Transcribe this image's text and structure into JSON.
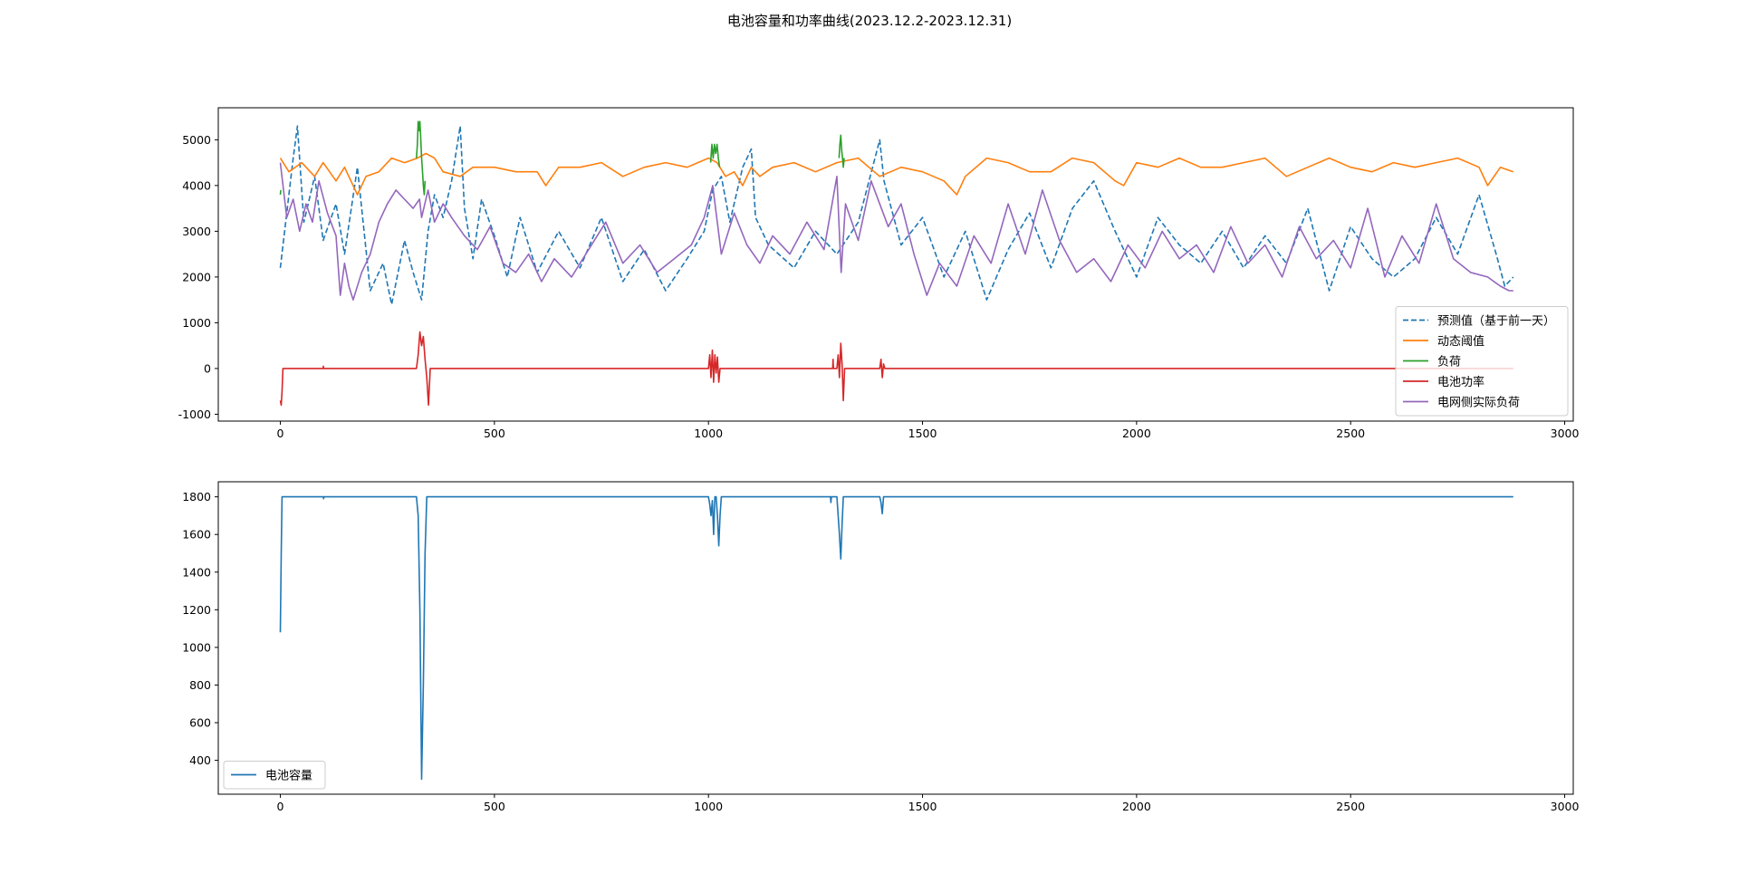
{
  "figure": {
    "title": "电池容量和功率曲线(2023.12.2-2023.12.31)"
  },
  "chart_data": [
    {
      "type": "line",
      "panel": "top",
      "xlim": [
        -145,
        3020
      ],
      "ylim": [
        -1150,
        5700
      ],
      "xticks": [
        0,
        500,
        1000,
        1500,
        2000,
        2500,
        3000
      ],
      "yticks": [
        -1000,
        0,
        1000,
        2000,
        3000,
        4000,
        5000
      ],
      "legend_position": "lower-right",
      "grid": false,
      "series": [
        {
          "name": "预测值（基于前一天）",
          "color": "#1f77b4",
          "dashed": true,
          "x": [
            0,
            15,
            30,
            40,
            55,
            80,
            100,
            130,
            150,
            180,
            210,
            240,
            260,
            290,
            310,
            330,
            345,
            360,
            380,
            400,
            420,
            430,
            450,
            470,
            500,
            530,
            560,
            600,
            650,
            700,
            750,
            800,
            850,
            900,
            950,
            990,
            1010,
            1030,
            1050,
            1080,
            1100,
            1110,
            1140,
            1200,
            1250,
            1300,
            1350,
            1400,
            1410,
            1450,
            1500,
            1550,
            1600,
            1650,
            1700,
            1750,
            1800,
            1850,
            1900,
            1950,
            2000,
            2050,
            2100,
            2150,
            2200,
            2250,
            2300,
            2350,
            2400,
            2450,
            2500,
            2550,
            2600,
            2650,
            2700,
            2750,
            2800,
            2840,
            2860,
            2880
          ],
          "y": [
            2200,
            3400,
            4600,
            5300,
            3200,
            4200,
            2800,
            3600,
            2500,
            4400,
            1700,
            2300,
            1400,
            2800,
            2100,
            1500,
            3000,
            3800,
            3300,
            4100,
            5300,
            3500,
            2400,
            3700,
            2900,
            2000,
            3300,
            2100,
            3000,
            2200,
            3300,
            1900,
            2600,
            1700,
            2400,
            3000,
            3900,
            4200,
            3200,
            4400,
            4800,
            3300,
            2700,
            2200,
            3000,
            2500,
            3200,
            5000,
            4100,
            2700,
            3300,
            2000,
            3000,
            1500,
            2600,
            3400,
            2200,
            3500,
            4100,
            3000,
            2000,
            3300,
            2700,
            2300,
            3000,
            2200,
            2900,
            2300,
            3500,
            1700,
            3100,
            2400,
            2000,
            2400,
            3300,
            2500,
            3800,
            2500,
            1800,
            2000
          ]
        },
        {
          "name": "动态阈值",
          "color": "#ff7f0e",
          "dashed": false,
          "x": [
            0,
            20,
            50,
            80,
            100,
            130,
            150,
            180,
            200,
            230,
            260,
            290,
            320,
            340,
            360,
            380,
            420,
            450,
            500,
            550,
            600,
            620,
            650,
            700,
            750,
            800,
            850,
            900,
            950,
            1000,
            1020,
            1040,
            1060,
            1080,
            1100,
            1120,
            1150,
            1200,
            1250,
            1300,
            1350,
            1400,
            1450,
            1500,
            1550,
            1580,
            1600,
            1650,
            1700,
            1750,
            1800,
            1850,
            1900,
            1950,
            1970,
            2000,
            2050,
            2100,
            2150,
            2200,
            2250,
            2300,
            2350,
            2400,
            2450,
            2500,
            2550,
            2600,
            2650,
            2700,
            2750,
            2800,
            2820,
            2850,
            2880
          ],
          "y": [
            4600,
            4300,
            4500,
            4200,
            4500,
            4100,
            4400,
            3800,
            4200,
            4300,
            4600,
            4500,
            4600,
            4700,
            4600,
            4300,
            4200,
            4400,
            4400,
            4300,
            4300,
            4000,
            4400,
            4400,
            4500,
            4200,
            4400,
            4500,
            4400,
            4600,
            4500,
            4200,
            4300,
            4000,
            4400,
            4200,
            4400,
            4500,
            4300,
            4500,
            4600,
            4200,
            4400,
            4300,
            4100,
            3800,
            4200,
            4600,
            4500,
            4300,
            4300,
            4600,
            4500,
            4100,
            4000,
            4500,
            4400,
            4600,
            4400,
            4400,
            4500,
            4600,
            4200,
            4400,
            4600,
            4400,
            4300,
            4500,
            4400,
            4500,
            4600,
            4400,
            4000,
            4400,
            4300
          ]
        },
        {
          "name": "负荷",
          "color": "#2ca02c",
          "dashed": false,
          "segments": [
            {
              "x": [
                0,
                1
              ],
              "y": [
                3800,
                3900
              ]
            },
            {
              "x": [
                318,
                320,
                322,
                324,
                326,
                328,
                330,
                332,
                334,
                336,
                338
              ],
              "y": [
                4600,
                4900,
                5400,
                5200,
                5400,
                5000,
                4600,
                4300,
                4000,
                3800,
                4100
              ]
            },
            {
              "x": [
                1005,
                1008,
                1011,
                1014,
                1017,
                1020,
                1023,
                1026
              ],
              "y": [
                4500,
                4900,
                4600,
                4900,
                4700,
                4900,
                4600,
                4400
              ]
            },
            {
              "x": [
                1305,
                1307,
                1309,
                1311,
                1313,
                1315,
                1317
              ],
              "y": [
                4600,
                4900,
                5100,
                4800,
                4600,
                4400,
                4600
              ]
            }
          ]
        },
        {
          "name": "电池功率",
          "color": "#d62728",
          "dashed": false,
          "x": [
            0,
            2,
            4,
            6,
            100,
            100.5,
            101,
            318,
            322,
            326,
            330,
            334,
            338,
            342,
            346,
            350,
            1000,
            1003,
            1006,
            1009,
            1012,
            1015,
            1018,
            1021,
            1024,
            1027,
            1290,
            1291,
            1292,
            1300,
            1303,
            1306,
            1309,
            1312,
            1315,
            1318,
            1321,
            1400,
            1403,
            1406,
            1409,
            1412,
            2880
          ],
          "y": [
            -700,
            -800,
            -500,
            0,
            0,
            50,
            0,
            0,
            300,
            800,
            500,
            700,
            200,
            -200,
            -800,
            0,
            0,
            300,
            -200,
            400,
            -300,
            300,
            -100,
            250,
            -300,
            0,
            0,
            200,
            0,
            0,
            300,
            -200,
            550,
            100,
            -700,
            0,
            0,
            0,
            200,
            -200,
            100,
            0,
            0
          ]
        },
        {
          "name": "电网侧实际负荷",
          "color": "#9467bd",
          "dashed": false,
          "x": [
            0,
            15,
            30,
            45,
            60,
            75,
            90,
            110,
            130,
            140,
            150,
            160,
            170,
            190,
            210,
            230,
            250,
            270,
            290,
            310,
            325,
            330,
            345,
            360,
            380,
            400,
            430,
            460,
            490,
            520,
            550,
            580,
            610,
            640,
            680,
            720,
            760,
            800,
            840,
            880,
            920,
            960,
            990,
            1010,
            1030,
            1060,
            1090,
            1120,
            1150,
            1190,
            1230,
            1270,
            1300,
            1310,
            1320,
            1350,
            1380,
            1420,
            1450,
            1480,
            1510,
            1540,
            1580,
            1620,
            1660,
            1700,
            1740,
            1780,
            1820,
            1860,
            1900,
            1940,
            1980,
            2020,
            2060,
            2100,
            2140,
            2180,
            2220,
            2260,
            2300,
            2340,
            2380,
            2420,
            2460,
            2500,
            2540,
            2580,
            2620,
            2660,
            2700,
            2740,
            2780,
            2820,
            2850,
            2870,
            2880
          ],
          "y": [
            4500,
            3300,
            3700,
            3000,
            3600,
            3200,
            4100,
            3400,
            2900,
            1600,
            2300,
            1800,
            1500,
            2100,
            2500,
            3200,
            3600,
            3900,
            3700,
            3500,
            3700,
            3300,
            3900,
            3200,
            3600,
            3300,
            2900,
            2600,
            3100,
            2300,
            2100,
            2500,
            1900,
            2400,
            2000,
            2600,
            3200,
            2300,
            2700,
            2100,
            2400,
            2700,
            3300,
            4000,
            2500,
            3400,
            2700,
            2300,
            2900,
            2500,
            3200,
            2600,
            4200,
            2100,
            3600,
            2800,
            4100,
            3100,
            3600,
            2500,
            1600,
            2300,
            1800,
            2900,
            2300,
            3600,
            2500,
            3900,
            2800,
            2100,
            2400,
            1900,
            2700,
            2200,
            3000,
            2400,
            2700,
            2100,
            3100,
            2300,
            2700,
            2000,
            3100,
            2400,
            2800,
            2200,
            3500,
            2000,
            2900,
            2300,
            3600,
            2400,
            2100,
            2000,
            1800,
            1700,
            1700
          ]
        }
      ]
    },
    {
      "type": "line",
      "panel": "bottom",
      "xlim": [
        -145,
        3020
      ],
      "ylim": [
        220,
        1880
      ],
      "xticks": [
        0,
        500,
        1000,
        1500,
        2000,
        2500,
        3000
      ],
      "yticks": [
        400,
        600,
        800,
        1000,
        1200,
        1400,
        1600,
        1800
      ],
      "legend_position": "lower-left",
      "grid": false,
      "series": [
        {
          "name": "电池容量",
          "color": "#1f77b4",
          "dashed": false,
          "x": [
            0,
            2,
            4,
            6,
            100,
            101,
            102,
            318,
            322,
            326,
            330,
            334,
            338,
            342,
            1000,
            1003,
            1006,
            1009,
            1012,
            1015,
            1018,
            1021,
            1024,
            1027,
            1030,
            1285,
            1286,
            1287,
            1300,
            1303,
            1306,
            1309,
            1312,
            1315,
            1318,
            1400,
            1403,
            1406,
            1409,
            1412,
            2880
          ],
          "y": [
            1080,
            1500,
            1800,
            1800,
            1800,
            1790,
            1800,
            1800,
            1700,
            1200,
            300,
            800,
            1500,
            1800,
            1800,
            1760,
            1700,
            1780,
            1600,
            1800,
            1800,
            1700,
            1540,
            1700,
            1800,
            1800,
            1770,
            1800,
            1800,
            1700,
            1600,
            1470,
            1650,
            1800,
            1800,
            1800,
            1770,
            1710,
            1800,
            1800,
            1800
          ]
        }
      ]
    }
  ]
}
